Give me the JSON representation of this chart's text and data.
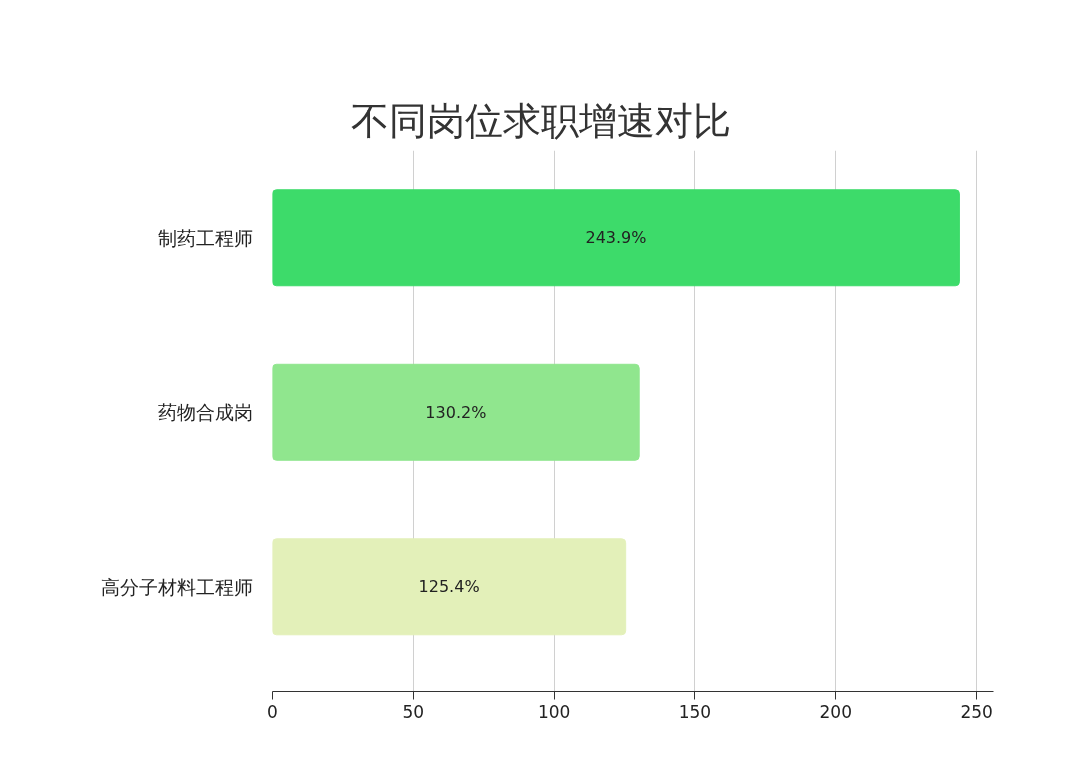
{
  "chart_data": {
    "type": "bar",
    "orientation": "horizontal",
    "title": "不同岗位求职增速对比",
    "categories": [
      "制药工程师",
      "药物合成岗",
      "高分子材料工程师"
    ],
    "values": [
      243.9,
      130.2,
      125.4
    ],
    "value_labels": [
      "243.9%",
      "130.2%",
      "125.4%"
    ],
    "colors": [
      "#3ddb6a",
      "#90e68e",
      "#e3f0b9"
    ],
    "xlim": [
      0,
      256
    ],
    "xticks": [
      0,
      50,
      100,
      150,
      200,
      250
    ],
    "grid": "x"
  }
}
